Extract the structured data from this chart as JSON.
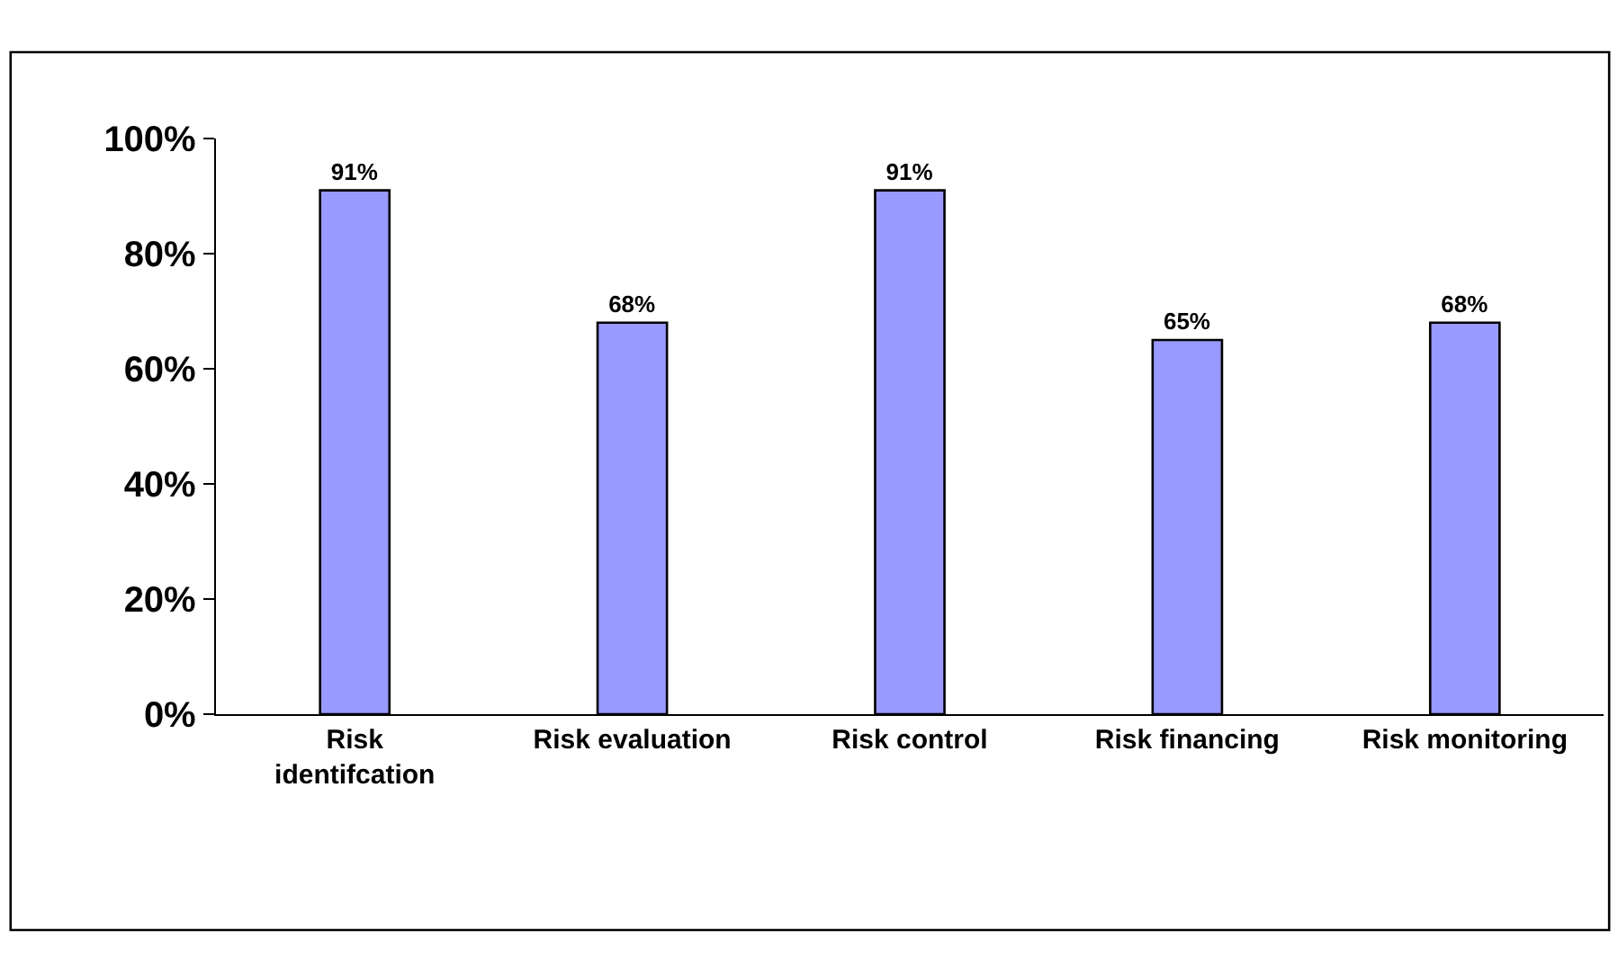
{
  "chart_data": {
    "type": "bar",
    "categories": [
      "Risk identifcation",
      "Risk evaluation",
      "Risk control",
      "Risk financing",
      "Risk monitoring"
    ],
    "values": [
      91,
      68,
      91,
      65,
      68
    ],
    "value_labels": [
      "91%",
      "68%",
      "91%",
      "65%",
      "68%"
    ],
    "color": "#9999ff",
    "ylim": [
      0,
      100
    ],
    "yticks": [
      {
        "value": 0,
        "label": "0%"
      },
      {
        "value": 20,
        "label": "20%"
      },
      {
        "value": 40,
        "label": "40%"
      },
      {
        "value": 60,
        "label": "60%"
      },
      {
        "value": 80,
        "label": "80%"
      },
      {
        "value": 100,
        "label": "100%"
      }
    ],
    "legend": false
  }
}
